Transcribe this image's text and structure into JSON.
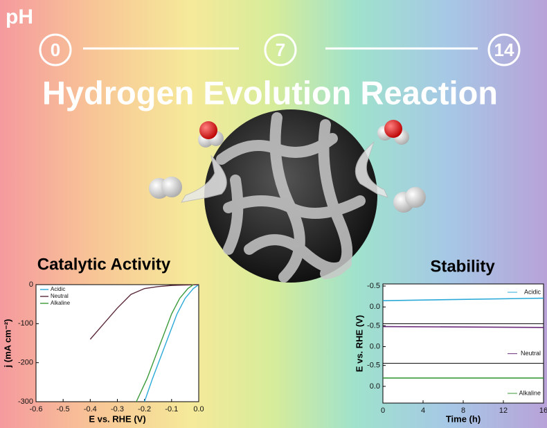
{
  "ph_label": "pH",
  "ph_scale": [
    0,
    7,
    14
  ],
  "title": "Hydrogen Evolution Reaction",
  "chart_data": [
    {
      "type": "line",
      "title": "Catalytic Activity",
      "xlabel": "E vs. RHE (V)",
      "ylabel": "j (mA cm⁻²)",
      "xlim": [
        -0.6,
        0.0
      ],
      "xticks": [
        -0.6,
        -0.5,
        -0.4,
        -0.3,
        -0.2,
        -0.1,
        {
          "value": 0,
          "label": "0.0"
        }
      ],
      "ylim": [
        -300,
        0
      ],
      "yticks": [
        0,
        -100,
        -200,
        -300
      ],
      "series": [
        {
          "name": "Acidic",
          "color": "#2aa9d8",
          "x": [
            0,
            -0.02,
            -0.05,
            -0.08,
            -0.11,
            -0.14,
            -0.17,
            -0.2
          ],
          "values": [
            0,
            -10,
            -35,
            -75,
            -130,
            -185,
            -240,
            -300
          ]
        },
        {
          "name": "Neutral",
          "color": "#5a2a3a",
          "x": [
            0,
            -0.1,
            -0.15,
            -0.2,
            -0.25,
            -0.3,
            -0.35,
            -0.4
          ],
          "values": [
            0,
            -2,
            -5,
            -10,
            -25,
            -60,
            -100,
            -140
          ]
        },
        {
          "name": "Alkaline",
          "color": "#3a9a3a",
          "x": [
            -0.02,
            -0.04,
            -0.07,
            -0.1,
            -0.13,
            -0.16,
            -0.19,
            -0.23
          ],
          "values": [
            0,
            -10,
            -35,
            -75,
            -130,
            -185,
            -240,
            -300
          ]
        }
      ]
    },
    {
      "type": "panels",
      "title": "Stability",
      "xlabel": "Time (h)",
      "ylabel": "E vs. RHE (V)",
      "xlim": [
        0,
        16
      ],
      "xticks": [
        0,
        4,
        8,
        12,
        16
      ],
      "series": [
        {
          "name": "Acidic",
          "color": "#2aa9d8",
          "x": [
            0,
            16
          ],
          "values": [
            -0.15,
            -0.21
          ],
          "ylim": [
            0.4,
            -0.55
          ],
          "yticks": [
            -0.5,
            {
              "value": 0,
              "label": "0.0"
            }
          ]
        },
        {
          "name": "Neutral",
          "color": "#6a2a7a",
          "x": [
            0,
            16
          ],
          "values": [
            -0.48,
            -0.46
          ],
          "ylim": [
            0.4,
            -0.55
          ],
          "yticks": [
            -0.5,
            {
              "value": 0,
              "label": "0.0"
            }
          ]
        },
        {
          "name": "Alkaline",
          "color": "#3a9a3a",
          "x": [
            0,
            16
          ],
          "values": [
            -0.2,
            -0.2
          ],
          "ylim": [
            0.4,
            -0.55
          ],
          "yticks": [
            -0.5,
            {
              "value": 0,
              "label": "0.0"
            }
          ]
        }
      ]
    }
  ]
}
